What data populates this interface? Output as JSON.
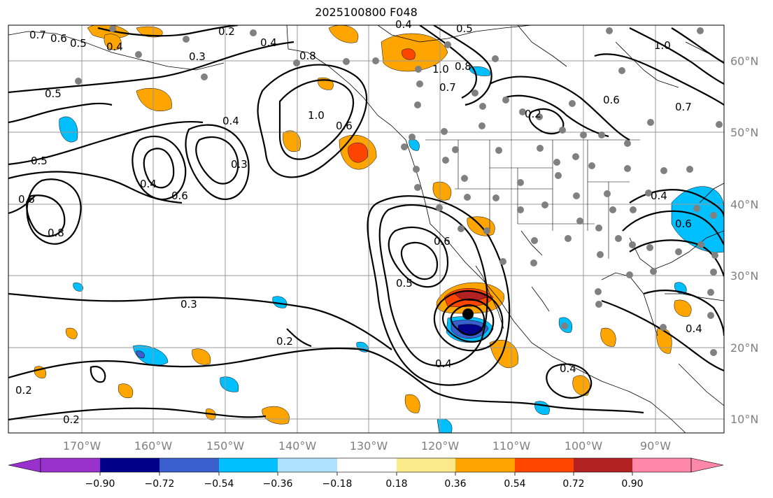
{
  "title": "2025100800 F048",
  "map": {
    "lon_range": [
      -180,
      -80
    ],
    "lat_range": [
      8,
      65
    ],
    "lon_ticks": [
      "170°W",
      "160°W",
      "150°W",
      "140°W",
      "130°W",
      "120°W",
      "110°W",
      "100°W",
      "90°W"
    ],
    "lat_ticks": [
      "60°N",
      "50°N",
      "40°N",
      "30°N",
      "20°N",
      "10°N"
    ]
  },
  "colorbar": {
    "ticks": [
      "−0.90",
      "−0.72",
      "−0.54",
      "−0.36",
      "−0.18",
      "0.18",
      "0.36",
      "0.54",
      "0.72",
      "0.90"
    ],
    "colors": [
      "#9932cc",
      "#00008b",
      "#3a5fcd",
      "#00bfff",
      "#b0e2ff",
      "#ffffff",
      "#fce98a",
      "#ffa500",
      "#ff4500",
      "#b22222",
      "#ff88aa"
    ]
  },
  "contour_labels": [
    {
      "text": "0.7"
    },
    {
      "text": "0.6"
    },
    {
      "text": "0.5"
    },
    {
      "text": "0.4"
    },
    {
      "text": "0.2"
    },
    {
      "text": "0.4"
    },
    {
      "text": "0.3"
    },
    {
      "text": "0.8"
    },
    {
      "text": "0.5"
    },
    {
      "text": "1.0"
    },
    {
      "text": "0.4"
    },
    {
      "text": "0.3"
    },
    {
      "text": "0.5"
    },
    {
      "text": "0.6"
    },
    {
      "text": "0.4"
    },
    {
      "text": "0.6"
    },
    {
      "text": "0.8"
    },
    {
      "text": "0.6"
    },
    {
      "text": "0.3"
    },
    {
      "text": "0.2"
    },
    {
      "text": "0.2"
    },
    {
      "text": "0.2"
    },
    {
      "text": "0.5"
    },
    {
      "text": "0.6"
    },
    {
      "text": "0.4"
    },
    {
      "text": "0.4"
    },
    {
      "text": "0.4"
    },
    {
      "text": "0.5"
    },
    {
      "text": "1.0"
    },
    {
      "text": "0.7"
    },
    {
      "text": "0.8"
    },
    {
      "text": "0.2"
    },
    {
      "text": "0.6"
    },
    {
      "text": "0.7"
    },
    {
      "text": "1.0"
    },
    {
      "text": "0.4"
    },
    {
      "text": "0.6"
    },
    {
      "text": "0.4"
    }
  ]
}
